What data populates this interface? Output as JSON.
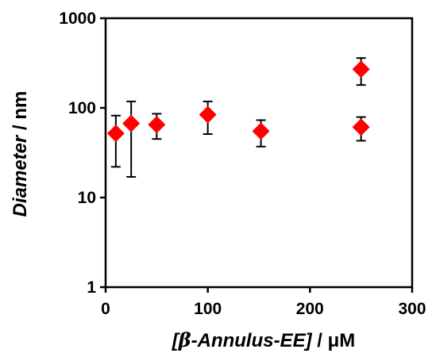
{
  "chart_data": {
    "type": "scatter",
    "title": "",
    "xlabel_parts": {
      "open": "[",
      "beta": "β",
      "name": "-Annulus-EE]",
      "unit": " / μM"
    },
    "ylabel_parts": {
      "name": "Diameter",
      "unit": " / nm"
    },
    "xlim": [
      0,
      300
    ],
    "ylim": [
      1,
      1000
    ],
    "yscale": "log",
    "xticks": [
      "0",
      "100",
      "200",
      "300"
    ],
    "yticks": [
      "1",
      "10",
      "100",
      "1000"
    ],
    "grid": false,
    "legend": "none",
    "marker": "diamond",
    "marker_color": "#ff0000",
    "series": [
      {
        "points": [
          {
            "x": 10,
            "y": 52,
            "y_low": 22,
            "y_high": 82
          },
          {
            "x": 25,
            "y": 67,
            "y_low": 17,
            "y_high": 118
          },
          {
            "x": 50,
            "y": 65,
            "y_low": 45,
            "y_high": 86
          },
          {
            "x": 100,
            "y": 84,
            "y_low": 51,
            "y_high": 118
          },
          {
            "x": 152,
            "y": 55,
            "y_low": 37,
            "y_high": 73
          },
          {
            "x": 250,
            "y": 270,
            "y_low": 180,
            "y_high": 360
          },
          {
            "x": 250,
            "y": 61,
            "y_low": 43,
            "y_high": 79
          }
        ]
      }
    ]
  }
}
